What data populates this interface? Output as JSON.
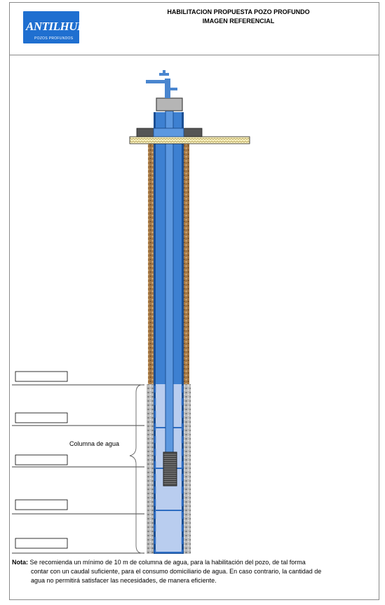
{
  "header": {
    "title_line1": "HABILITACION PROPUESTA POZO PROFUNDO",
    "title_line2": "IMAGEN REFERENCIAL"
  },
  "logo": {
    "name": "ANTILHUE",
    "subtitle": "POZOS PROFUNDOS",
    "color": "#1f6fd0"
  },
  "diagram": {
    "water_column_label": "Columna de agua",
    "depth_boxes": [
      "",
      "",
      "",
      "",
      ""
    ]
  },
  "note": {
    "label": "Nota:",
    "line1": "Se recomienda un mínimo de 10 m de columna de agua, para la habilitación del pozo, de tal forma",
    "line2": "contar con un caudal suficiente, para el consumo domiciliario de agua. En caso contrario, la cantidad de",
    "line3": "agua no permitirá satisfacer las necesidades, de manera eficiente."
  },
  "colors": {
    "casing": "#3a7fcf",
    "water": "#b9cdef",
    "soil": "#b88a5a",
    "gravel": "#9a9a9a"
  }
}
